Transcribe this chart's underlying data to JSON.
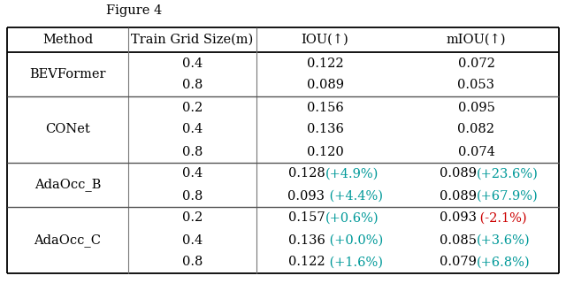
{
  "title": "Figure 4",
  "col_headers": [
    "Method",
    "Train Grid Size(m)",
    "IOU(↑)",
    "mIOU(↑)"
  ],
  "rows": [
    {
      "method": "BEVFormer",
      "grid": "0.4",
      "iou_base": "0.122",
      "iou_delta": "",
      "iou_delta_color": "#000000",
      "miou_base": "0.072",
      "miou_delta": "",
      "miou_delta_color": "#000000"
    },
    {
      "method": "",
      "grid": "0.8",
      "iou_base": "0.089",
      "iou_delta": "",
      "iou_delta_color": "#000000",
      "miou_base": "0.053",
      "miou_delta": "",
      "miou_delta_color": "#000000"
    },
    {
      "method": "CONet",
      "grid": "0.2",
      "iou_base": "0.156",
      "iou_delta": "",
      "iou_delta_color": "#000000",
      "miou_base": "0.095",
      "miou_delta": "",
      "miou_delta_color": "#000000"
    },
    {
      "method": "",
      "grid": "0.4",
      "iou_base": "0.136",
      "iou_delta": "",
      "iou_delta_color": "#000000",
      "miou_base": "0.082",
      "miou_delta": "",
      "miou_delta_color": "#000000"
    },
    {
      "method": "",
      "grid": "0.8",
      "iou_base": "0.120",
      "iou_delta": "",
      "iou_delta_color": "#000000",
      "miou_base": "0.074",
      "miou_delta": "",
      "miou_delta_color": "#000000"
    },
    {
      "method": "AdaOcc_B",
      "grid": "0.4",
      "iou_base": "0.128",
      "iou_delta": "(+4.9%)",
      "iou_delta_color": "#009999",
      "miou_base": "0.089",
      "miou_delta": "(+23.6%)",
      "miou_delta_color": "#009999"
    },
    {
      "method": "",
      "grid": "0.8",
      "iou_base": "0.093",
      "iou_delta": " (+4.4%)",
      "iou_delta_color": "#009999",
      "miou_base": "0.089",
      "miou_delta": "(+67.9%)",
      "miou_delta_color": "#009999"
    },
    {
      "method": "AdaOcc_C",
      "grid": "0.2",
      "iou_base": "0.157",
      "iou_delta": "(+0.6%)",
      "iou_delta_color": "#009999",
      "miou_base": "0.093",
      "miou_delta": " (-2.1%)",
      "miou_delta_color": "#CC0000"
    },
    {
      "method": "",
      "grid": "0.4",
      "iou_base": "0.136",
      "iou_delta": " (+0.0%)",
      "iou_delta_color": "#009999",
      "miou_base": "0.085",
      "miou_delta": "(+3.6%)",
      "miou_delta_color": "#009999"
    },
    {
      "method": "",
      "grid": "0.8",
      "iou_base": "0.122",
      "iou_delta": " (+1.6%)",
      "iou_delta_color": "#009999",
      "miou_base": "0.079",
      "miou_delta": "(+6.8%)",
      "miou_delta_color": "#009999"
    }
  ],
  "method_groups": [
    {
      "name": "BEVFormer",
      "start": 0,
      "end": 1
    },
    {
      "name": "CONet",
      "start": 2,
      "end": 4
    },
    {
      "name": "AdaOcc_B",
      "start": 5,
      "end": 6
    },
    {
      "name": "AdaOcc_C",
      "start": 7,
      "end": 9
    }
  ],
  "group_sep_before": [
    2,
    5,
    7
  ],
  "bg_color": "#ffffff",
  "text_color": "#000000",
  "font_size": 10.5,
  "header_font_size": 10.5
}
